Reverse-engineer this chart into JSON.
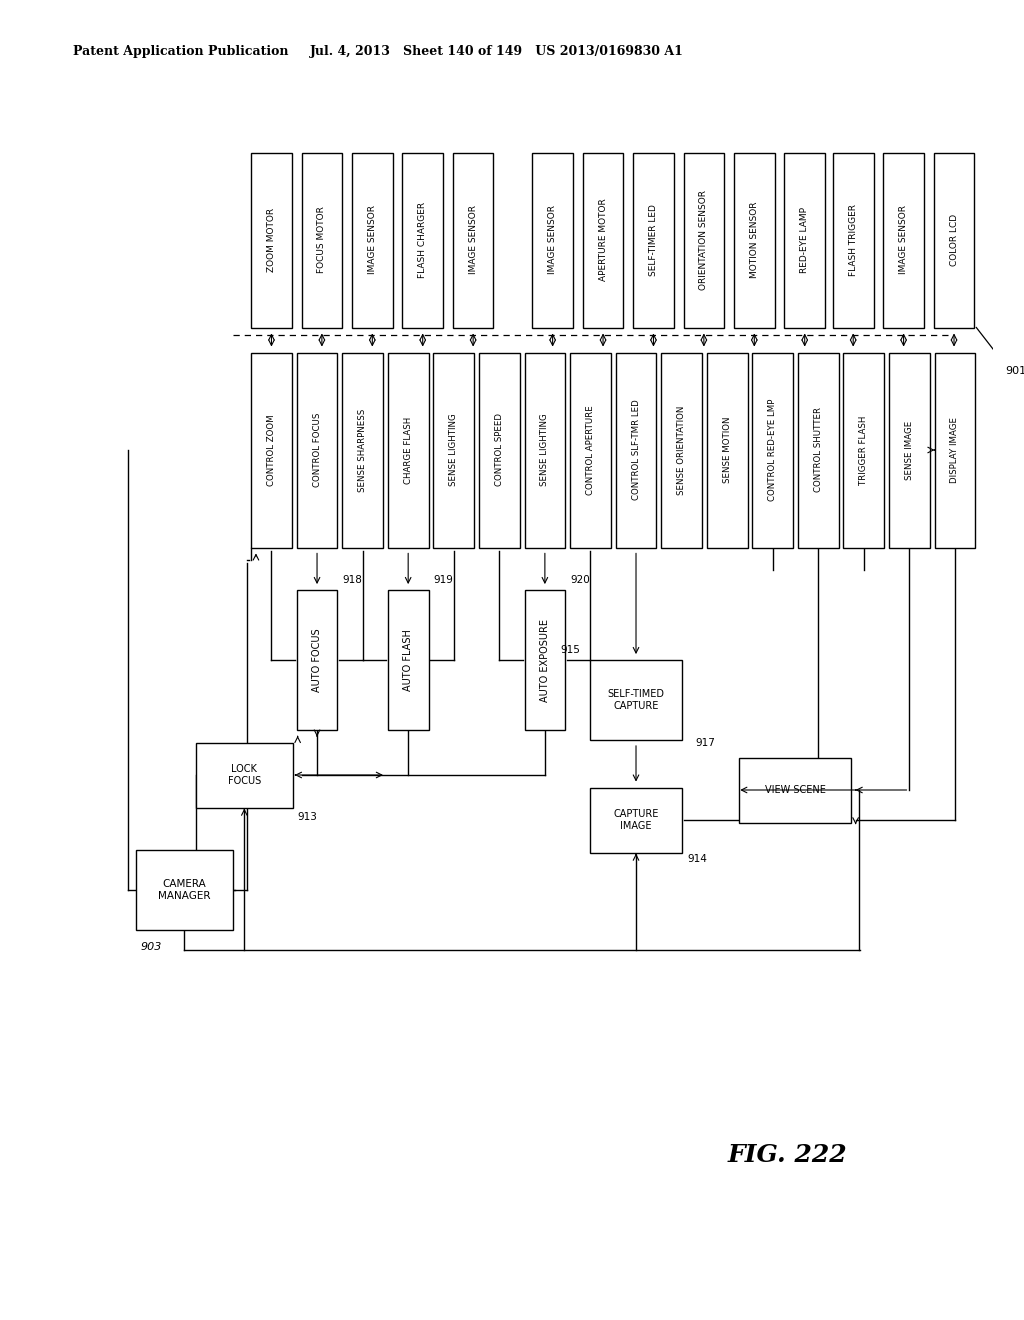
{
  "header_left": "Patent Application Publication",
  "header_mid": "Jul. 4, 2013   Sheet 140 of 149   US 2013/0169830 A1",
  "fig_label": "FIG. 222",
  "bg_color": "#ffffff",
  "hw_labels_g1": [
    "ZOOM MOTOR",
    "FOCUS MOTOR",
    "IMAGE SENSOR",
    "FLASH CHARGER",
    "IMAGE SENSOR"
  ],
  "hw_labels_g2": [
    "IMAGE SENSOR",
    "APERTURE MOTOR",
    "SELF-TIMER LED",
    "ORIENTATION SENSOR",
    "MOTION SENSOR",
    "RED-EYE LAMP"
  ],
  "hw_labels_g3": [
    "FLASH TRIGGER",
    "IMAGE SENSOR",
    "COLOR LCD"
  ],
  "sw_labels": [
    "CONTROL ZOOM",
    "CONTROL FOCUS",
    "SENSE SHARPNESS",
    "CHARGE FLASH",
    "SENSE LIGHTING",
    "CONTROL SPEED",
    "SENSE LIGHTING",
    "CONTROL APERTURE",
    "CONTROL SLF-TMR LED",
    "SENSE ORIENTATION",
    "SENSE MOTION",
    "CONTROL RED-EYE LMP",
    "CONTROL SHUTTER",
    "TRIGGER FLASH",
    "SENSE IMAGE",
    "DISPLAY IMAGE"
  ],
  "label_901": "901",
  "label_903": "903",
  "label_913": "913",
  "label_914": "914",
  "label_915": "915",
  "label_917": "917",
  "label_918": "918",
  "label_919": "919",
  "label_920": "920"
}
